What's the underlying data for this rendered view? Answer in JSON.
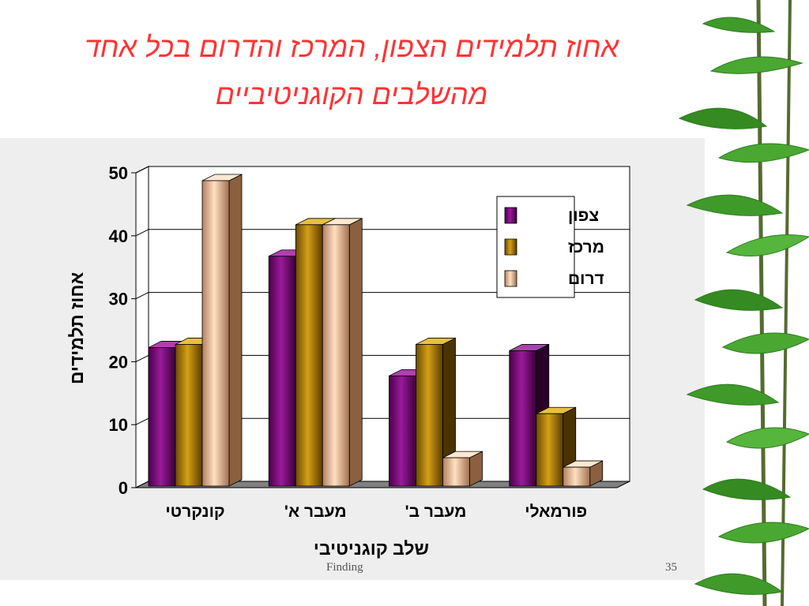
{
  "slide": {
    "title_line1": "אחוז תלמידים הצפון, המרכז והדרום בכל אחד",
    "title_line2": "מהשלבים הקוגניטיביים",
    "footer": "Finding",
    "page_number": "35",
    "title_color": "#ff3333"
  },
  "chart_data": {
    "type": "bar",
    "title": "",
    "xlabel": "שלב קוגניטיבי",
    "ylabel": "אחוז תלמידים",
    "ylim": [
      0,
      50
    ],
    "yticks": [
      0,
      10,
      20,
      30,
      40,
      50
    ],
    "grid": true,
    "legend_position": "top-right",
    "categories": [
      "קונקרטי",
      "מעבר א'",
      "מעבר ב'",
      "פורמאלי"
    ],
    "series": [
      {
        "name": "צפון",
        "values": [
          22,
          36.5,
          17.5,
          21.5
        ],
        "color": "#800080"
      },
      {
        "name": "מרכז",
        "values": [
          22.5,
          41.5,
          22.5,
          11.5
        ],
        "color": "#b8860b"
      },
      {
        "name": "דרום",
        "values": [
          48.5,
          41.5,
          4.5,
          3
        ],
        "color": "#f0c8a0"
      }
    ]
  }
}
